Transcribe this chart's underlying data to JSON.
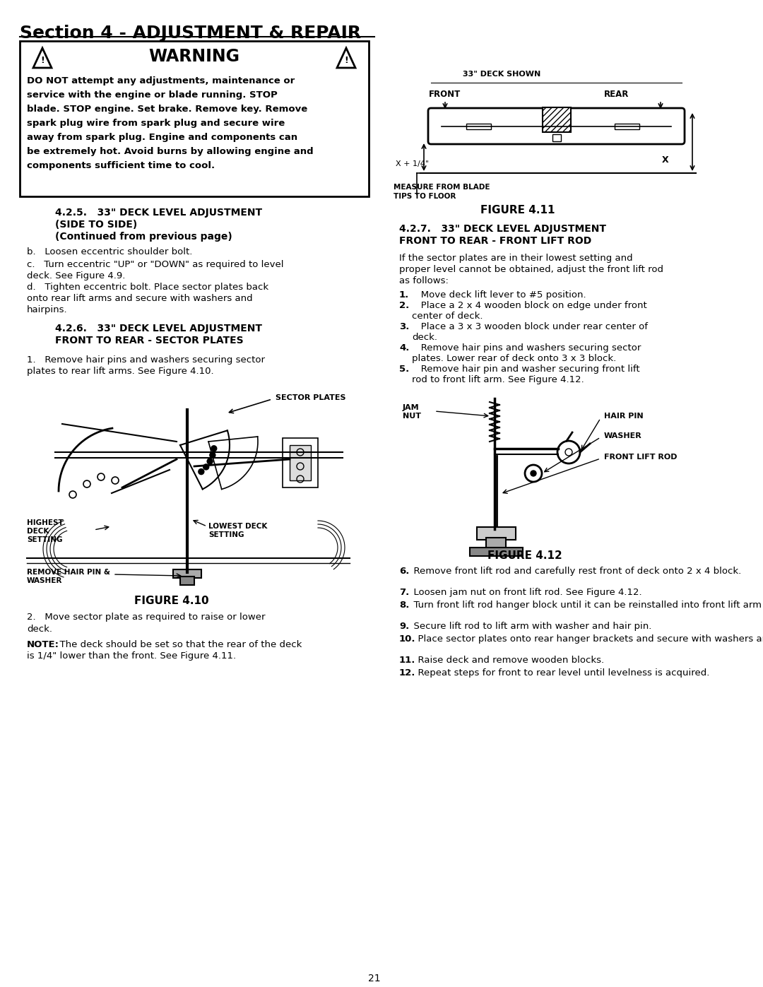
{
  "page_title": "Section 4 - ADJUSTMENT & REPAIR",
  "warning_title": "WARNING",
  "warning_text_lines": [
    "DO NOT attempt any adjustments, maintenance or",
    "service with the engine or blade running. STOP",
    "blade. STOP engine. Set brake. Remove key. Remove",
    "spark plug wire from spark plug and secure wire",
    "away from spark plug. Engine and components can",
    "be extremely hot. Avoid burns by allowing engine and",
    "components sufficient time to cool."
  ],
  "section_425_title_lines": [
    "4.2.5.   33\" DECK LEVEL ADJUSTMENT",
    "(SIDE TO SIDE)",
    "(Continued from previous page)"
  ],
  "sec425_b": "b.   Loosen eccentric shoulder bolt.",
  "sec425_c_lines": [
    "c.   Turn eccentric \"UP\" or \"DOWN\" as required to level",
    "deck. See Figure 4.9."
  ],
  "sec425_d_lines": [
    "d.   Tighten eccentric bolt. Place sector plates back",
    "onto rear lift arms and secure with washers and",
    "hairpins."
  ],
  "section_426_title_lines": [
    "4.2.6.   33\" DECK LEVEL ADJUSTMENT",
    "FRONT TO REAR - SECTOR PLATES"
  ],
  "sec426_1_lines": [
    "1.   Remove hair pins and washers securing sector",
    "plates to rear lift arms. See Figure 4.10."
  ],
  "fig410_label_sector": "SECTOR PLATES",
  "fig410_label_highest": "HIGHEST\nDECK\nSETTING",
  "fig410_label_lowest": "LOWEST DECK\nSETTING",
  "fig410_label_remove": "REMOVE HAIR PIN &\nWASHER",
  "fig410_caption": "FIGURE 4.10",
  "sec426_2_lines": [
    "2.   Move sector plate as required to raise or lower",
    "deck."
  ],
  "note_bold": "NOTE:",
  "note_rest_lines": [
    "  The deck should be set so that the rear of the deck",
    "is 1/4\" lower than the front. See Figure 4.11."
  ],
  "fig411_label_top": "33\" DECK SHOWN",
  "fig411_label_front": "FRONT",
  "fig411_label_rear": "REAR",
  "fig411_label_x14": "X + 1/4\"",
  "fig411_label_x": "X",
  "fig411_label_measure_lines": [
    "MEASURE FROM BLADE",
    "TIPS TO FLOOR"
  ],
  "fig411_caption": "FIGURE 4.11",
  "section_427_title_lines": [
    "4.2.7.   33\" DECK LEVEL ADJUSTMENT",
    "FRONT TO REAR - FRONT LIFT ROD"
  ],
  "sec427_intro_lines": [
    "If the sector plates are in their lowest setting and",
    "proper level cannot be obtained, adjust the front lift rod",
    "as follows:"
  ],
  "sec427_steps_1_5": [
    "1.   Move deck lift lever to #5 position.",
    "2.   Place a 2 x 4 wooden block on edge under front",
    "center of deck.",
    "3.   Place a 3 x 3 wooden block under rear center of",
    "deck.",
    "4.   Remove hair pins and washers securing sector",
    "plates. Lower rear of deck onto 3 x 3 block.",
    "5.   Remove hair pin and washer securing front lift",
    "rod to front lift arm. See Figure 4.12."
  ],
  "fig412_label_jam": "JAM\nNUT",
  "fig412_label_hairpin": "HAIR PIN",
  "fig412_label_washer": "WASHER",
  "fig412_label_rod": "FRONT LIFT ROD",
  "fig412_caption": "FIGURE 4.12",
  "sec427_steps_6_12": [
    [
      "6.",
      "  Remove front lift rod and carefully rest front of deck onto 2 x 4 block."
    ],
    [
      "7.",
      "  Loosen jam nut on front lift rod. See Figure 4.12."
    ],
    [
      "8.",
      "  Turn front lift rod hanger block until it can be reinstalled into front lift arm without lifting deck."
    ],
    [
      "9.",
      "  Secure lift rod to lift arm with washer and hair pin."
    ],
    [
      "10.",
      "  Place sector plates onto rear hanger brackets and secure with washers and hair pins."
    ],
    [
      "11.",
      "  Raise deck and remove wooden blocks."
    ],
    [
      "12.",
      "  Repeat steps for front to rear level until levelness is acquired."
    ]
  ],
  "page_number": "21"
}
